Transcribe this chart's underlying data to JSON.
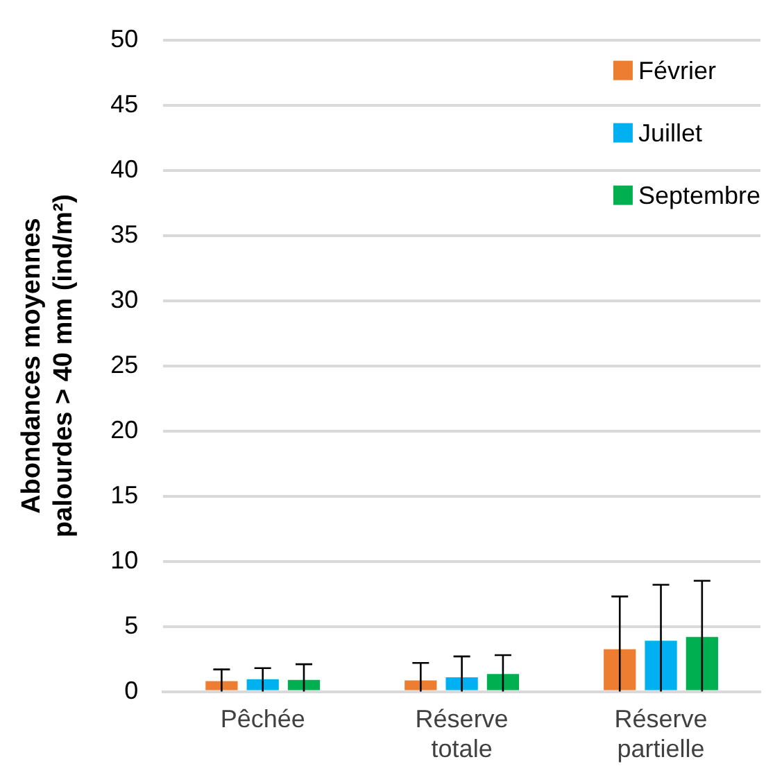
{
  "chart_data": {
    "type": "bar",
    "ylabel": "Abondances moyennes\npalourdes > 40 mm (ind/m²)",
    "categories": [
      "Pêchée",
      "Réserve totale",
      "Réserve partielle"
    ],
    "series": [
      {
        "name": "Février",
        "color": "#ed7d31",
        "values": [
          0.8,
          0.85,
          3.25
        ],
        "errors": [
          [
            0,
            1.7
          ],
          [
            0,
            2.2
          ],
          [
            0,
            7.3
          ]
        ]
      },
      {
        "name": "Juillet",
        "color": "#00b0f0",
        "values": [
          0.95,
          1.1,
          3.9
        ],
        "errors": [
          [
            0,
            1.8
          ],
          [
            0,
            2.7
          ],
          [
            0,
            8.2
          ]
        ]
      },
      {
        "name": "Septembre",
        "color": "#00b050",
        "values": [
          0.9,
          1.35,
          4.2
        ],
        "errors": [
          [
            0,
            2.1
          ],
          [
            0,
            2.8
          ],
          [
            0,
            8.5
          ]
        ]
      }
    ],
    "ylim": [
      0,
      50
    ],
    "yticks": [
      0,
      5,
      10,
      15,
      20,
      25,
      30,
      35,
      40,
      45,
      50
    ],
    "grid": "y",
    "legend": "top right"
  }
}
